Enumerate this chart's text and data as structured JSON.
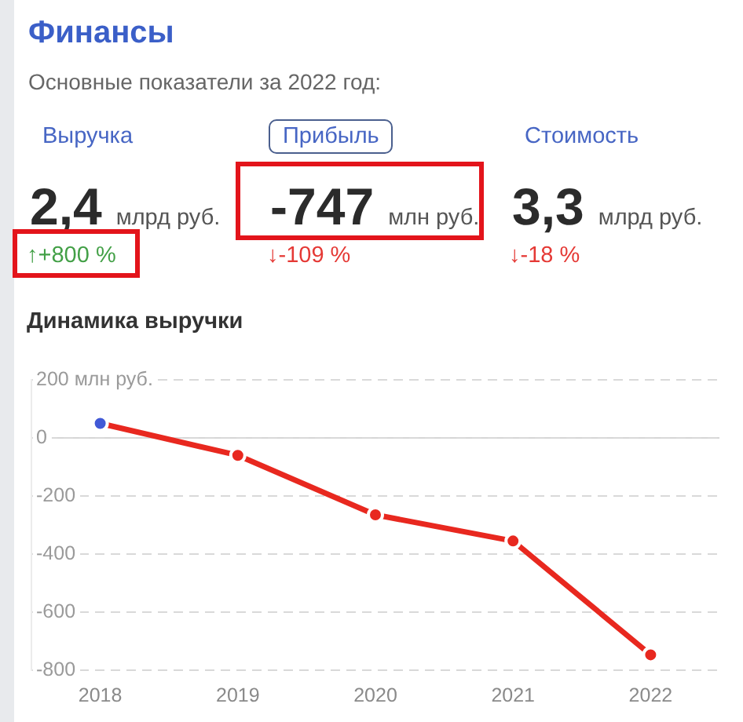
{
  "chart_data": [
    {
      "type": "other",
      "title": "Финансы",
      "subtitle": "Основные показатели за 2022 год:",
      "annotations": [
        "Выручка",
        "2,4",
        "млрд руб.",
        "↑+800 %",
        "Прибыль",
        "-747",
        "млн руб.",
        "↓-109 %",
        "Стоимость",
        "3,3",
        "млрд руб.",
        "↓-18 %"
      ]
    },
    {
      "type": "line",
      "title": "Динамика выручки",
      "categories": [
        "2018",
        "2019",
        "2020",
        "2021",
        "2022"
      ],
      "values": [
        50,
        -60,
        -265,
        -355,
        -747
      ],
      "color": "#e8281f",
      "colors": [
        "#4159d6",
        "#e8281f",
        "#e8281f",
        "#e8281f",
        "#e8281f"
      ],
      "ylim": [
        -800,
        200
      ],
      "yticks": [
        {
          "value": 200,
          "label": "200 млн руб."
        },
        0,
        -200,
        -400,
        -600,
        -800
      ],
      "grid": "y",
      "marker": "circle",
      "line_style": "solid",
      "ref_lines": [
        {
          "axis": "y",
          "value": 0,
          "color": "#d6d6d6",
          "line_style": "solid"
        }
      ]
    }
  ]
}
